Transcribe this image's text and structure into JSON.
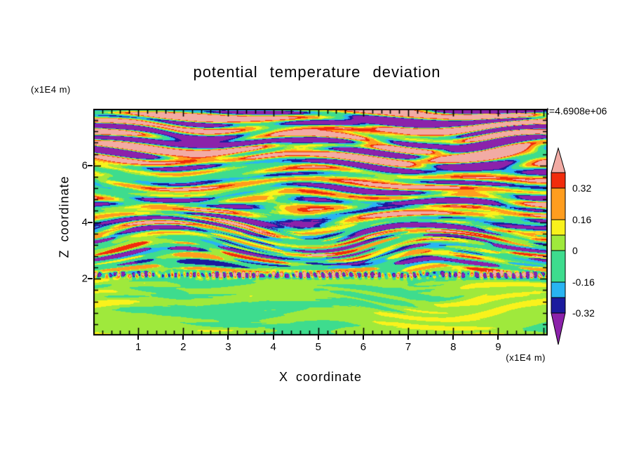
{
  "page": {
    "background": "#ffffff",
    "frame_color": "#000000"
  },
  "chart_data": {
    "type": "heatmap",
    "title": "potential temperature deviation",
    "time_label": "t=4.6908e+06",
    "xlabel": "X coordinate",
    "ylabel": "Z coordinate",
    "x_unit_label": "(x1E4 m)",
    "y_unit_label": "(x1E4 m)",
    "xlim": [
      0,
      10.1
    ],
    "ylim": [
      0,
      8
    ],
    "x_ticks": [
      1,
      2,
      3,
      4,
      5,
      6,
      7,
      8,
      9
    ],
    "y_ticks": [
      2,
      4,
      6
    ],
    "x_minor_step": 0.2,
    "y_minor_step": 0.4,
    "zones": [
      {
        "z_range": [
          5.8,
          8.0
        ],
        "character": "strong alternating bands, values beyond +0.4 (pink) and -0.4 (purple)"
      },
      {
        "z_range": [
          3.7,
          5.8
        ],
        "character": "turbulent thin layers, values about -0.35 to +0.35 (red/orange/yellow vs cyan/navy)"
      },
      {
        "z_range": [
          2.1,
          3.7
        ],
        "character": "weakly perturbed green background (-0.16 to 0.08) with sparse thin warm/cold streaks"
      },
      {
        "z_range": [
          0.0,
          2.1
        ],
        "character": "smooth convective blobs, values about 0 to 0.08 (light green) with green patches"
      }
    ],
    "colorbar": {
      "labels": [
        {
          "value": 0.32,
          "text": "0.32"
        },
        {
          "value": 0.16,
          "text": "0.16"
        },
        {
          "value": 0,
          "text": "0"
        },
        {
          "value": -0.16,
          "text": "-0.16"
        },
        {
          "value": -0.32,
          "text": "-0.32"
        }
      ],
      "segments": [
        {
          "kind": "arrow-up",
          "color": "#f2aba4",
          "height": 35
        },
        {
          "kind": "band",
          "color": "#f12c0c",
          "height": 22,
          "range": [
            0.32,
            0.4
          ]
        },
        {
          "kind": "band",
          "color": "#ff9d1e",
          "height": 45,
          "range": [
            0.16,
            0.32
          ]
        },
        {
          "kind": "band",
          "color": "#f9f21c",
          "height": 22,
          "range": [
            0.08,
            0.16
          ]
        },
        {
          "kind": "band",
          "color": "#9fe93c",
          "height": 22,
          "range": [
            0.0,
            0.08
          ]
        },
        {
          "kind": "band",
          "color": "#3edc8e",
          "height": 45,
          "range": [
            -0.16,
            0.0
          ]
        },
        {
          "kind": "band",
          "color": "#29b4f2",
          "height": 22,
          "range": [
            -0.24,
            -0.16
          ]
        },
        {
          "kind": "band",
          "color": "#1b1b9e",
          "height": 22,
          "range": [
            -0.32,
            -0.24
          ]
        },
        {
          "kind": "arrow-down",
          "color": "#8b22aa",
          "height": 45
        }
      ]
    },
    "field": {
      "seed": 8,
      "warp_amp": 0.018,
      "amp_profile": [
        [
          0,
          0.54
        ],
        [
          0.24,
          0.5
        ],
        [
          0.3,
          0.32
        ],
        [
          0.5,
          0.3
        ],
        [
          0.58,
          0.11
        ],
        [
          0.71,
          0.095
        ],
        [
          0.755,
          0.03
        ],
        [
          1,
          0.025
        ]
      ],
      "bias_profile": [
        [
          0,
          0.06
        ],
        [
          0.26,
          0.04
        ],
        [
          0.34,
          -0.02
        ],
        [
          0.55,
          -0.045
        ],
        [
          0.71,
          -0.04
        ],
        [
          0.77,
          0.025
        ],
        [
          1,
          0.03
        ]
      ],
      "streak_profile": [
        [
          0,
          0.06
        ],
        [
          0.3,
          0.06
        ],
        [
          0.5,
          0.1
        ],
        [
          0.56,
          0.3
        ],
        [
          0.72,
          0.26
        ],
        [
          0.755,
          0.04
        ],
        [
          1,
          0.01
        ]
      ],
      "blob_profile": [
        [
          0,
          0
        ],
        [
          0.72,
          0
        ],
        [
          0.78,
          0.05
        ],
        [
          1,
          0.055
        ]
      ],
      "speckle": {
        "center": 0.733,
        "sigma": 0.011,
        "amp": 0.5
      },
      "levels": [
        {
          "min": 0.4,
          "color": "#f2aba4"
        },
        {
          "min": 0.32,
          "color": "#f12c0c"
        },
        {
          "min": 0.16,
          "color": "#ff9d1e"
        },
        {
          "min": 0.08,
          "color": "#f9f21c"
        },
        {
          "min": 0.0,
          "color": "#9fe93c"
        },
        {
          "min": -0.16,
          "color": "#3edc8e"
        },
        {
          "min": -0.24,
          "color": "#29b4f2"
        },
        {
          "min": -0.32,
          "color": "#1b1b9e"
        },
        {
          "min": -9000000000.0,
          "color": "#8b22aa"
        }
      ]
    }
  }
}
